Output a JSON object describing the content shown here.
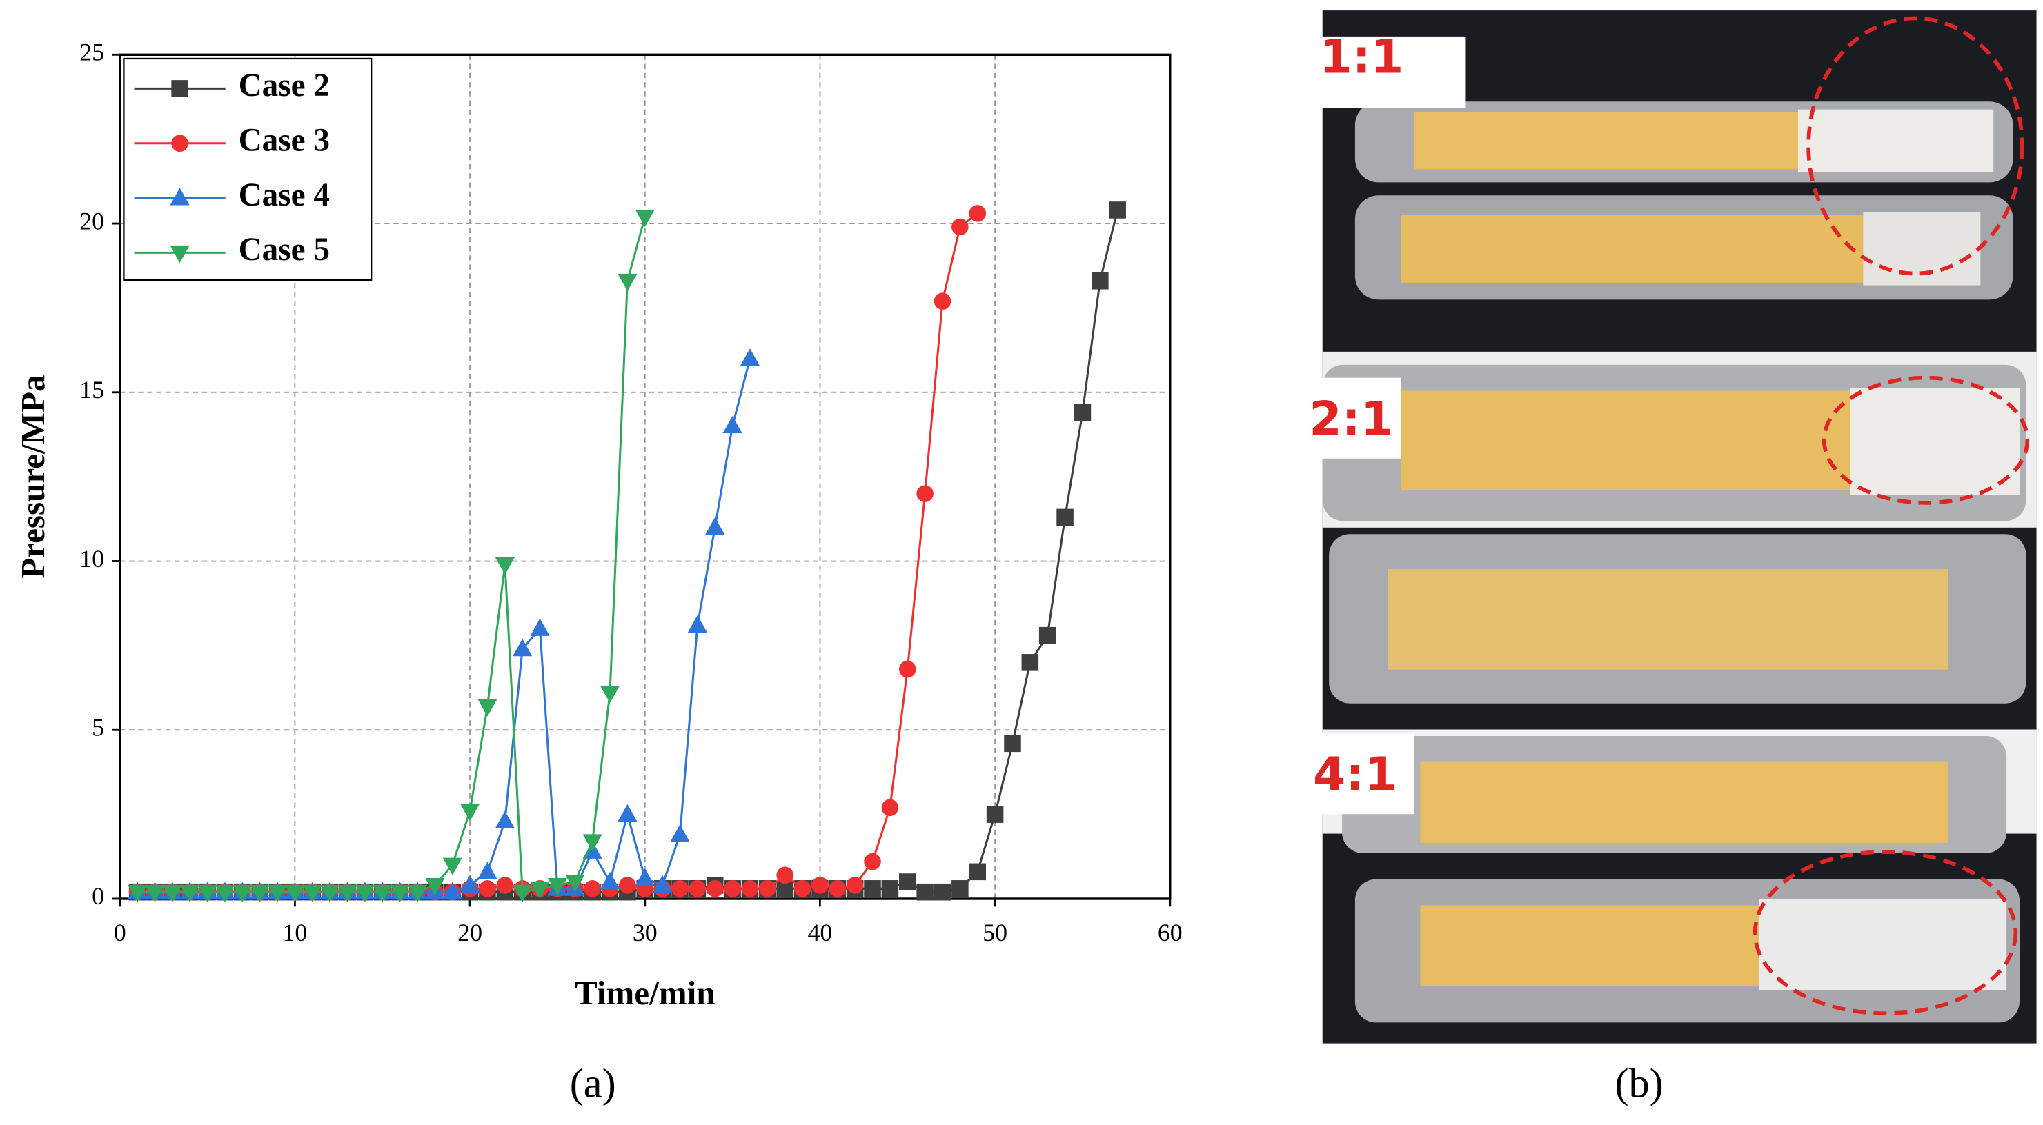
{
  "chart_data": {
    "type": "line",
    "xlabel": "Time/min",
    "ylabel": "Pressure/MPa",
    "xlim": [
      0,
      60
    ],
    "xticks": [
      0,
      10,
      20,
      30,
      40,
      50,
      60
    ],
    "ylim": [
      0,
      25
    ],
    "yticks": [
      0,
      5,
      10,
      15,
      20,
      25
    ],
    "grid": true,
    "legend_position": "upper left",
    "series": [
      {
        "name": "Case 2",
        "color": "#3f3f3f",
        "marker": "square",
        "x": [
          1,
          2,
          3,
          4,
          5,
          6,
          7,
          8,
          9,
          10,
          11,
          12,
          13,
          14,
          15,
          16,
          17,
          18,
          19,
          20,
          21,
          22,
          23,
          24,
          25,
          26,
          27,
          28,
          29,
          30,
          31,
          32,
          33,
          34,
          35,
          36,
          37,
          38,
          39,
          40,
          41,
          42,
          43,
          44,
          45,
          46,
          47,
          48,
          49,
          50,
          51,
          52,
          53,
          54,
          55,
          56,
          57
        ],
        "values": [
          0.2,
          0.2,
          0.2,
          0.2,
          0.2,
          0.2,
          0.2,
          0.2,
          0.2,
          0.2,
          0.2,
          0.2,
          0.2,
          0.2,
          0.2,
          0.2,
          0.2,
          0.2,
          0.2,
          0.2,
          0.2,
          0.2,
          0.2,
          0.2,
          0.2,
          0.2,
          0.2,
          0.2,
          0.2,
          0.3,
          0.3,
          0.3,
          0.3,
          0.4,
          0.3,
          0.3,
          0.3,
          0.3,
          0.3,
          0.3,
          0.3,
          0.3,
          0.3,
          0.3,
          0.5,
          0.2,
          0.2,
          0.3,
          0.8,
          2.5,
          4.6,
          7.0,
          7.8,
          11.3,
          14.4,
          18.3,
          20.4
        ]
      },
      {
        "name": "Case 3",
        "color": "#f03030",
        "marker": "circle",
        "x": [
          1,
          2,
          3,
          4,
          5,
          6,
          7,
          8,
          9,
          10,
          11,
          12,
          13,
          14,
          15,
          16,
          17,
          18,
          19,
          20,
          21,
          22,
          23,
          24,
          25,
          26,
          27,
          28,
          29,
          30,
          31,
          32,
          33,
          34,
          35,
          36,
          37,
          38,
          39,
          40,
          41,
          42,
          43,
          44,
          45,
          46,
          47,
          48,
          49
        ],
        "values": [
          0.2,
          0.2,
          0.2,
          0.2,
          0.2,
          0.2,
          0.2,
          0.2,
          0.2,
          0.2,
          0.2,
          0.2,
          0.2,
          0.2,
          0.2,
          0.2,
          0.2,
          0.2,
          0.2,
          0.3,
          0.3,
          0.4,
          0.3,
          0.3,
          0.3,
          0.3,
          0.3,
          0.3,
          0.4,
          0.3,
          0.3,
          0.3,
          0.3,
          0.3,
          0.3,
          0.3,
          0.3,
          0.7,
          0.3,
          0.4,
          0.3,
          0.4,
          1.1,
          2.7,
          6.8,
          12.0,
          17.7,
          19.9,
          20.3
        ]
      },
      {
        "name": "Case 4",
        "color": "#2f74d8",
        "marker": "triangle-up",
        "x": [
          1,
          2,
          3,
          4,
          5,
          6,
          7,
          8,
          9,
          10,
          11,
          12,
          13,
          14,
          15,
          16,
          17,
          18,
          19,
          20,
          21,
          22,
          23,
          24,
          25,
          26,
          27,
          28,
          29,
          30,
          31,
          32,
          33,
          34,
          35,
          36
        ],
        "values": [
          0.2,
          0.2,
          0.2,
          0.2,
          0.2,
          0.2,
          0.2,
          0.2,
          0.2,
          0.2,
          0.2,
          0.2,
          0.2,
          0.2,
          0.2,
          0.2,
          0.2,
          0.2,
          0.2,
          0.4,
          0.8,
          2.3,
          7.4,
          8.0,
          0.3,
          0.3,
          1.4,
          0.5,
          2.5,
          0.6,
          0.4,
          1.9,
          8.1,
          11.0,
          14.0,
          16.0
        ]
      },
      {
        "name": "Case 5",
        "color": "#2ea85a",
        "marker": "triangle-down",
        "x": [
          1,
          2,
          3,
          4,
          5,
          6,
          7,
          8,
          9,
          10,
          11,
          12,
          13,
          14,
          15,
          16,
          17,
          18,
          19,
          20,
          21,
          22,
          23,
          24,
          25,
          26,
          27,
          28,
          29,
          30
        ],
        "values": [
          0.2,
          0.2,
          0.2,
          0.2,
          0.2,
          0.2,
          0.2,
          0.2,
          0.2,
          0.2,
          0.2,
          0.2,
          0.2,
          0.2,
          0.2,
          0.2,
          0.2,
          0.4,
          1.0,
          2.6,
          5.7,
          9.9,
          0.2,
          0.3,
          0.4,
          0.5,
          1.7,
          6.1,
          18.3,
          20.2
        ]
      }
    ]
  },
  "panel_labels": [
    "(a)",
    "(b)"
  ],
  "photo_labels": [
    "1:1",
    "2:1",
    "4:1"
  ]
}
